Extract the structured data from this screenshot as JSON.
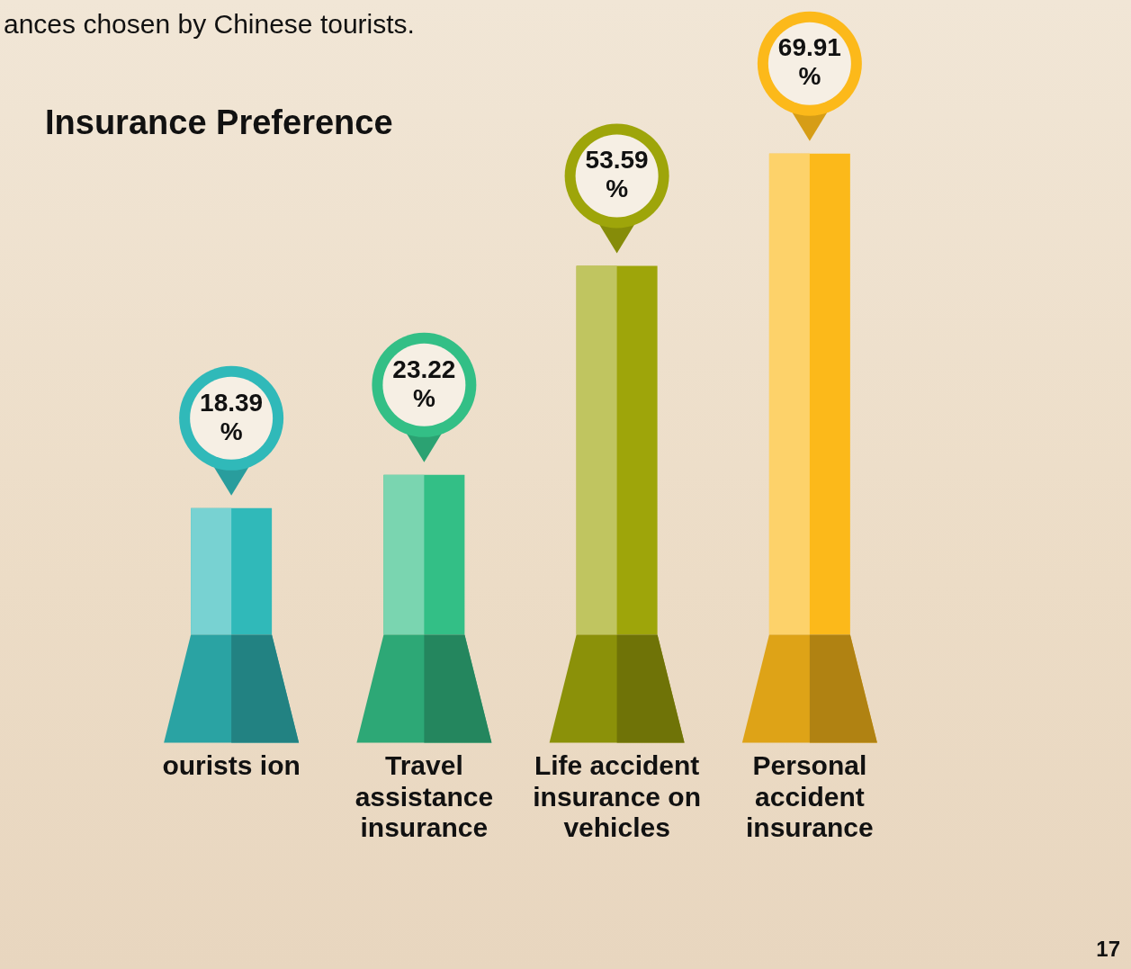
{
  "chart_data": {
    "type": "bar",
    "title": "Insurance Preference",
    "subtitle": "ances chosen by Chinese tourists.",
    "annotations": [
      "17"
    ],
    "categories": [
      "ourists ion",
      "Travel assistance insurance",
      "Life accident insurance on vehicles",
      "Personal accident insurance"
    ],
    "values": [
      18.39,
      23.22,
      53.59,
      69.91
    ],
    "value_labels": [
      "18.39 %",
      "23.22 %",
      "53.59 %",
      "69.91 %"
    ],
    "colors": [
      "#30b9b9",
      "#33bf86",
      "#9ea50a",
      "#fcb91a"
    ],
    "data_labels": true,
    "grid": false,
    "tick_labels": "x"
  }
}
